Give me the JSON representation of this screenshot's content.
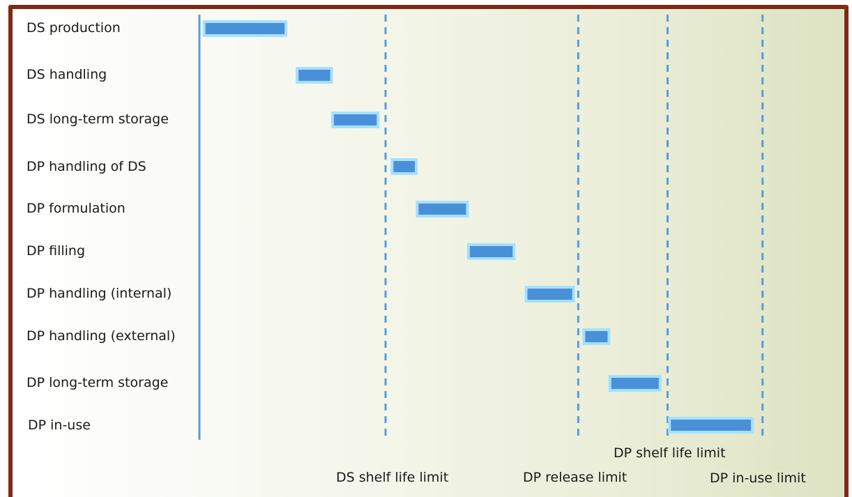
{
  "rows": [
    {
      "label": "DS production",
      "start": 0.5,
      "end": 9.3
    },
    {
      "label": "DS handling",
      "start": 10.5,
      "end": 14.2
    },
    {
      "label": "DS long-term storage",
      "start": 14.3,
      "end": 19.2
    },
    {
      "label": "DP handling of DS",
      "start": 20.7,
      "end": 23.3
    },
    {
      "label": "DP formulation",
      "start": 23.4,
      "end": 28.8
    },
    {
      "label": "DP filling",
      "start": 28.9,
      "end": 33.8
    },
    {
      "label": "DP handling (internal)",
      "start": 35.1,
      "end": 40.2
    },
    {
      "label": "DP handling (external)",
      "start": 41.3,
      "end": 44.0
    },
    {
      "label": "DP long-term storage",
      "start": 44.1,
      "end": 49.5
    },
    {
      "label": "DP in-use",
      "start": 50.5,
      "end": 59.4
    }
  ],
  "limits": [
    {
      "label": "DS shelf life limit",
      "position": 20
    },
    {
      "label": "DP release limit",
      "position": 40.7
    },
    {
      "label": "DP shelf life limit",
      "position": 50.3
    },
    {
      "label": "DP in-use limit",
      "position": 60.5
    }
  ],
  "colors": {
    "frame": "#7e2a17",
    "bar_fill": "#4a90d9",
    "bar_border": "#a6e1fb",
    "line": "#5b9bd5"
  }
}
